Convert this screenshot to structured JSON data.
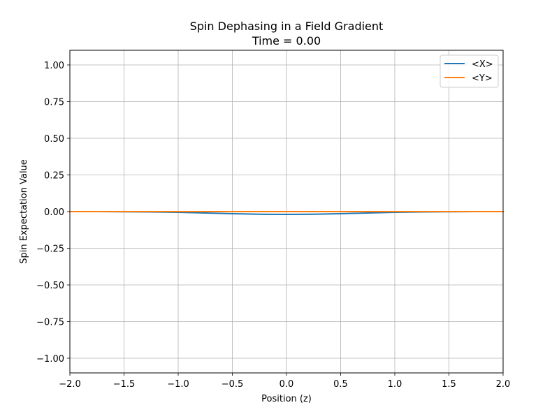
{
  "chart_data": {
    "type": "line",
    "title": "Spin Dephasing in a Field Gradient",
    "subtitle": "Time = 0.00",
    "xlabel": "Position (z)",
    "ylabel": "Spin Expectation Value",
    "xlim": [
      -2.0,
      2.0
    ],
    "ylim": [
      -1.1,
      1.1
    ],
    "xticks": [
      -2.0,
      -1.5,
      -1.0,
      -0.5,
      0.0,
      0.5,
      1.0,
      1.5,
      2.0
    ],
    "xtick_labels": [
      "−2.0",
      "−1.5",
      "−1.0",
      "−0.5",
      "0.0",
      "0.5",
      "1.0",
      "1.5",
      "2.0"
    ],
    "yticks": [
      1.0,
      0.75,
      0.5,
      0.25,
      0.0,
      -0.25,
      -0.5,
      -0.75,
      -1.0
    ],
    "ytick_labels": [
      "1.00",
      "0.75",
      "0.50",
      "0.25",
      "0.00",
      "−0.25",
      "−0.50",
      "−0.75",
      "−1.00"
    ],
    "grid": true,
    "legend_position": "top-right",
    "x": [
      -2.0,
      -1.75,
      -1.5,
      -1.25,
      -1.0,
      -0.75,
      -0.5,
      -0.25,
      0.0,
      0.25,
      0.5,
      0.75,
      1.0,
      1.25,
      1.5,
      1.75,
      2.0
    ],
    "series": [
      {
        "name": "<X>",
        "color": "#1f77b4",
        "values": [
          0.0,
          -0.0003,
          -0.001,
          -0.0025,
          -0.005,
          -0.0095,
          -0.014,
          -0.018,
          -0.019,
          -0.018,
          -0.014,
          -0.0095,
          -0.005,
          -0.0025,
          -0.001,
          -0.0003,
          0.0
        ]
      },
      {
        "name": "<Y>",
        "color": "#ff7f0e",
        "values": [
          0.0,
          0.0,
          0.0,
          0.0,
          0.0,
          0.0,
          0.0,
          0.0,
          0.0,
          0.0,
          0.0,
          0.0,
          0.0,
          0.0,
          0.0,
          0.0,
          0.0
        ]
      }
    ]
  }
}
